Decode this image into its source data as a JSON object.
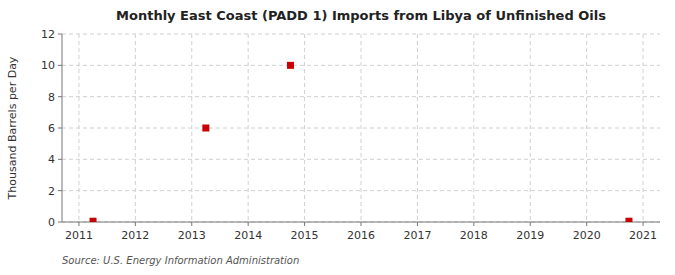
{
  "chart_data": {
    "type": "scatter",
    "title": "Monthly East Coast (PADD 1) Imports from Libya of Unfinished Oils",
    "ylabel": "Thousand Barrels per Day",
    "annotations": [
      "Source: U.S. Energy Information Administration"
    ],
    "x": [
      2011.25,
      2013.25,
      2014.75,
      2020.75
    ],
    "values": [
      0.05,
      6.0,
      10.0,
      0.05
    ],
    "color": "#cc0000",
    "marker": "square",
    "xlim": [
      2010.7,
      2021.3
    ],
    "ylim": [
      0,
      12
    ],
    "xticks": [
      2011,
      2012,
      2013,
      2014,
      2015,
      2016,
      2017,
      2018,
      2019,
      2020,
      2021
    ],
    "yticks": [
      0,
      2,
      4,
      6,
      8,
      10,
      12
    ],
    "grid": true
  }
}
